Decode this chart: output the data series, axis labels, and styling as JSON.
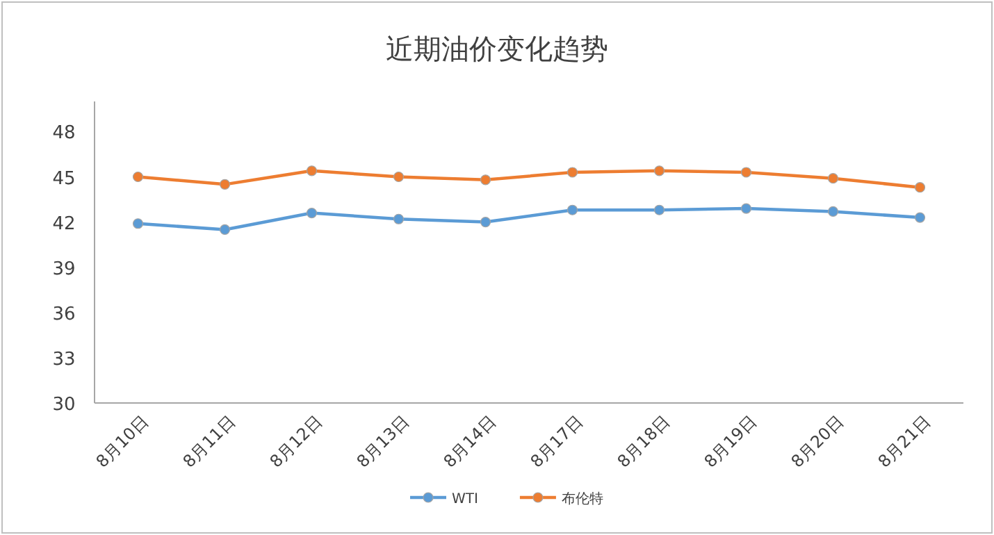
{
  "chart_data": {
    "type": "line",
    "title": "近期油价变化趋势",
    "categories": [
      "8月10日",
      "8月11日",
      "8月12日",
      "8月13日",
      "8月14日",
      "8月17日",
      "8月18日",
      "8月19日",
      "8月20日",
      "8月21日"
    ],
    "series": [
      {
        "name": "WTI",
        "color": "#5b9bd5",
        "values": [
          41.9,
          41.5,
          42.6,
          42.2,
          42.0,
          42.8,
          42.8,
          42.9,
          42.7,
          42.3
        ]
      },
      {
        "name": "布伦特",
        "color": "#ed7d31",
        "values": [
          45.0,
          44.5,
          45.4,
          45.0,
          44.8,
          45.3,
          45.4,
          45.3,
          44.9,
          44.3
        ]
      }
    ],
    "ylim": [
      30,
      50
    ],
    "yticks": [
      30,
      33,
      36,
      39,
      42,
      45,
      48
    ],
    "grid": false,
    "legend": "bottom",
    "marker": "circle",
    "line_style": "solid"
  }
}
